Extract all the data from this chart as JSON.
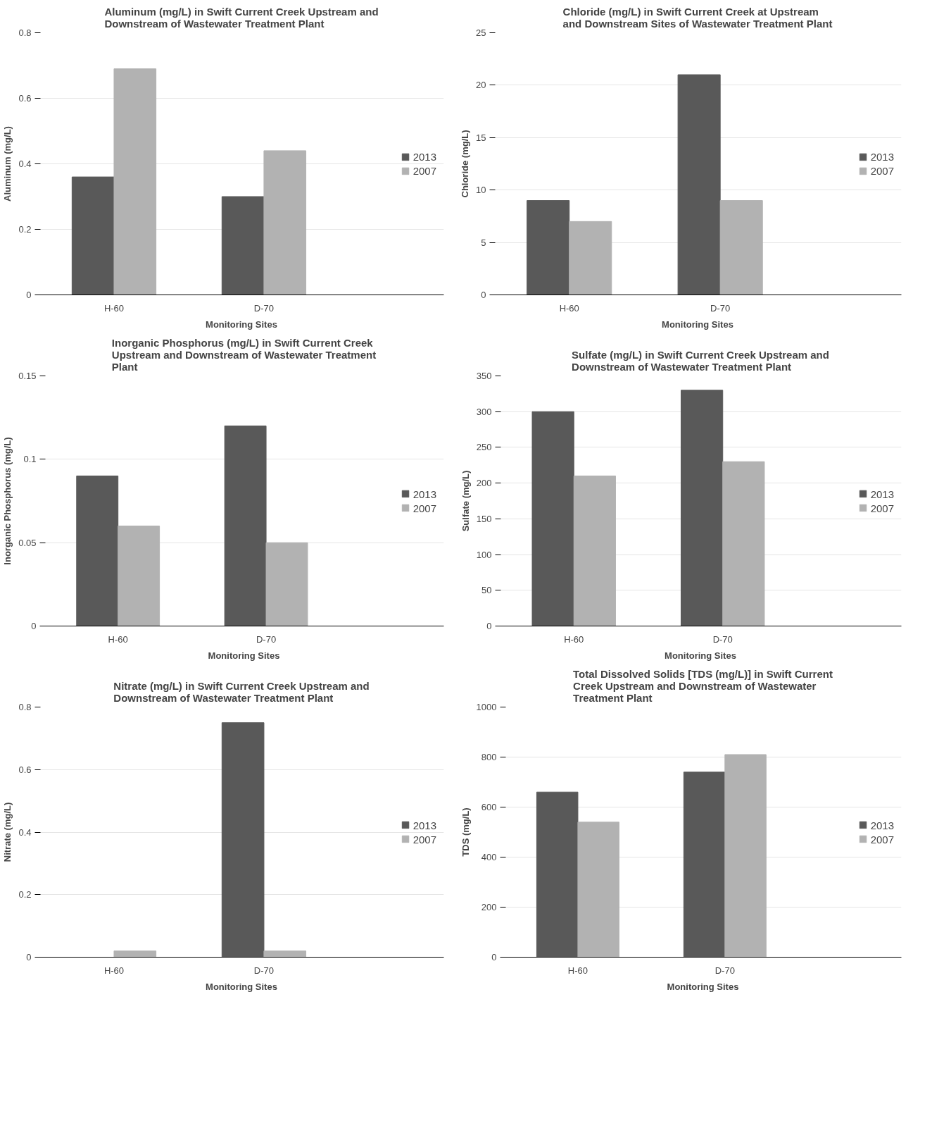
{
  "chart_data": [
    {
      "type": "bar",
      "title": "Aluminum (mg/L) in Swift Current Creek Upstream and Downstream of Wastewater Treatment Plant",
      "xlabel": "Monitoring Sites",
      "ylabel": "Aluminum (mg/L)",
      "categories": [
        "H-60",
        "D-70"
      ],
      "series": [
        {
          "name": "2013",
          "color": "#595959",
          "values": [
            0.36,
            0.3
          ]
        },
        {
          "name": "2007",
          "color": "#b2b2b2",
          "values": [
            0.69,
            0.44
          ]
        }
      ],
      "ylim": [
        0,
        0.8
      ],
      "yticks": [
        0,
        0.2,
        0.4,
        0.6,
        0.8
      ],
      "grid": "y",
      "legend": "right"
    },
    {
      "type": "bar",
      "title": "Chloride (mg/L) in Swift Current Creek at Upstream and Downstream Sites of Wastewater Treatment Plant",
      "xlabel": "Monitoring Sites",
      "ylabel": "Chloride (mg/L)",
      "categories": [
        "H-60",
        "D-70"
      ],
      "series": [
        {
          "name": "2013",
          "color": "#595959",
          "values": [
            9,
            21
          ]
        },
        {
          "name": "2007",
          "color": "#b2b2b2",
          "values": [
            7,
            9
          ]
        }
      ],
      "ylim": [
        0,
        25
      ],
      "yticks": [
        0,
        5,
        10,
        15,
        20,
        25
      ],
      "grid": "y",
      "legend": "right"
    },
    {
      "type": "bar",
      "title": "Inorganic Phosphorus (mg/L) in Swift Current Creek Upstream and Downstream of Wastewater Treatment Plant",
      "xlabel": "Monitoring Sites",
      "ylabel": "Inorganic Phosphorus (mg/L)",
      "categories": [
        "H-60",
        "D-70"
      ],
      "series": [
        {
          "name": "2013",
          "color": "#595959",
          "values": [
            0.09,
            0.12
          ]
        },
        {
          "name": "2007",
          "color": "#b2b2b2",
          "values": [
            0.06,
            0.05
          ]
        }
      ],
      "ylim": [
        0,
        0.15
      ],
      "yticks": [
        0,
        0.05,
        0.1,
        0.15
      ],
      "grid": "y",
      "legend": "right"
    },
    {
      "type": "bar",
      "title": "Sulfate (mg/L) in Swift Current Creek Upstream and Downstream of Wastewater Treatment Plant",
      "xlabel": "Monitoring Sites",
      "ylabel": "Sulfate (mg/L)",
      "categories": [
        "H-60",
        "D-70"
      ],
      "series": [
        {
          "name": "2013",
          "color": "#595959",
          "values": [
            300,
            330
          ]
        },
        {
          "name": "2007",
          "color": "#b2b2b2",
          "values": [
            210,
            230
          ]
        }
      ],
      "ylim": [
        0,
        350
      ],
      "yticks": [
        0,
        50,
        100,
        150,
        200,
        250,
        300,
        350
      ],
      "grid": "y",
      "legend": "right"
    },
    {
      "type": "bar",
      "title": "Nitrate (mg/L) in Swift Current Creek Upstream and Downstream of Wastewater Treatment Plant",
      "xlabel": "Monitoring Sites",
      "ylabel": "Nitrate (mg/L)",
      "categories": [
        "H-60",
        "D-70"
      ],
      "series": [
        {
          "name": "2013",
          "color": "#595959",
          "values": [
            0,
            0.75
          ]
        },
        {
          "name": "2007",
          "color": "#b2b2b2",
          "values": [
            0.02,
            0.02
          ]
        }
      ],
      "ylim": [
        0,
        0.8
      ],
      "yticks": [
        0,
        0.2,
        0.4,
        0.6,
        0.8
      ],
      "grid": "y",
      "legend": "right"
    },
    {
      "type": "bar",
      "title": "Total Dissolved Solids [TDS (mg/L)] in Swift Current Creek Upstream and Downstream of Wastewater Treatment Plant",
      "xlabel": "Monitoring Sites",
      "ylabel": "TDS (mg/L)",
      "categories": [
        "H-60",
        "D-70"
      ],
      "series": [
        {
          "name": "2013",
          "color": "#595959",
          "values": [
            660,
            740
          ]
        },
        {
          "name": "2007",
          "color": "#b2b2b2",
          "values": [
            540,
            810
          ]
        }
      ],
      "ylim": [
        0,
        1000
      ],
      "yticks": [
        0,
        200,
        400,
        600,
        800,
        1000
      ],
      "grid": "y",
      "legend": "right"
    }
  ]
}
